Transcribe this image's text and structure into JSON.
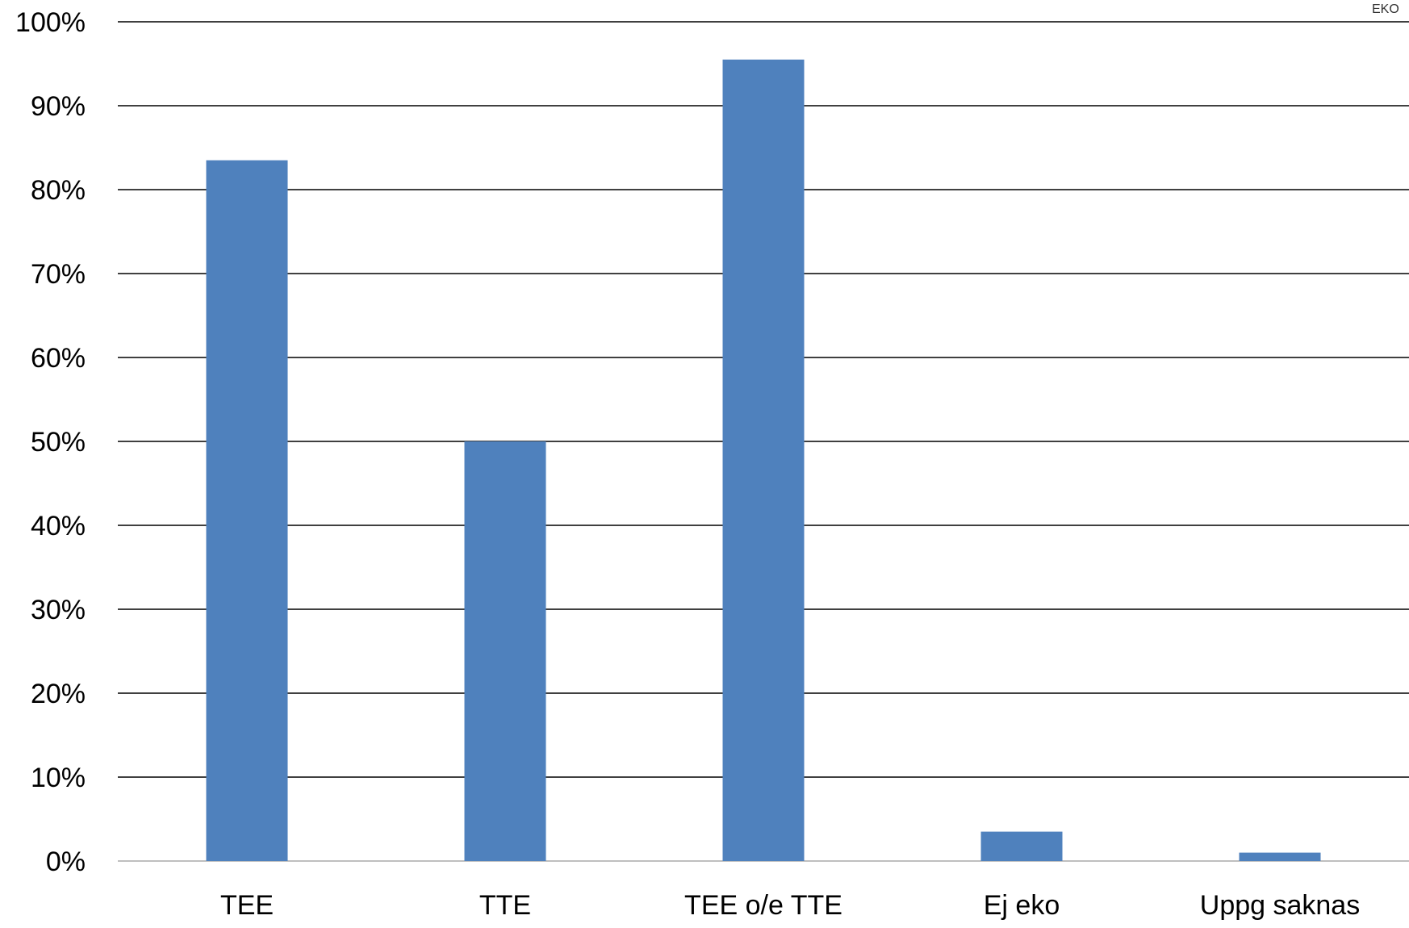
{
  "chart_data": {
    "type": "bar",
    "title": "",
    "xlabel": "",
    "ylabel": "",
    "categories": [
      "TEE",
      "TTE",
      "TEE o/e TTE",
      "Ej eko",
      "Uppg saknas"
    ],
    "values": [
      83.5,
      50.0,
      95.5,
      3.5,
      1.0
    ],
    "ylim": [
      0,
      100
    ],
    "yticks": [
      0,
      10,
      20,
      30,
      40,
      50,
      60,
      70,
      80,
      90,
      100
    ],
    "ytick_labels": [
      "0%",
      "10%",
      "20%",
      "30%",
      "40%",
      "50%",
      "60%",
      "70%",
      "80%",
      "90%",
      "100%"
    ],
    "grid": true,
    "legend": "none",
    "bar_color": "#4f81bd",
    "grid_color": "#000000",
    "corner_mark_text": "EKO"
  }
}
